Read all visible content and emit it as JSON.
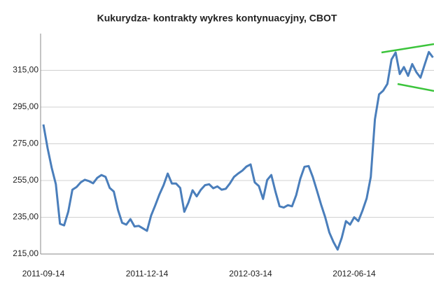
{
  "chart_data": {
    "type": "line",
    "title": "Kukurydza- kontrakty wykres kontynuacyjny, CBOT",
    "categories": [
      "2011-09-14",
      null,
      null,
      null,
      null,
      null,
      null,
      null,
      null,
      null,
      null,
      null,
      null,
      null,
      null,
      null,
      null,
      null,
      null,
      null,
      null,
      null,
      null,
      null,
      null,
      "2011-12-14",
      null,
      null,
      null,
      null,
      null,
      null,
      null,
      null,
      null,
      null,
      null,
      null,
      null,
      null,
      null,
      null,
      null,
      null,
      null,
      null,
      null,
      null,
      null,
      null,
      "2012-03-14",
      null,
      null,
      null,
      null,
      null,
      null,
      null,
      null,
      null,
      null,
      null,
      null,
      null,
      null,
      null,
      null,
      null,
      null,
      null,
      null,
      null,
      null,
      null,
      null,
      "2012-06-14",
      null,
      null,
      null,
      null,
      null,
      null,
      null,
      null,
      null,
      null,
      null,
      null,
      null,
      null,
      null,
      null,
      null,
      null,
      null
    ],
    "series": [
      {
        "name": "Kukurydza",
        "color": "#4a7ebb",
        "values": [
          285.5,
          272.8,
          262,
          253,
          231.4,
          230.6,
          238,
          250,
          251.5,
          254,
          255.4,
          254.7,
          253.5,
          256.5,
          258,
          257,
          251,
          249,
          239,
          232,
          231,
          234,
          230,
          230.3,
          229,
          227.6,
          236,
          241.5,
          247.5,
          252.5,
          258.8,
          253.4,
          253.4,
          251,
          238,
          243,
          249.7,
          246.4,
          250,
          252.5,
          253,
          250.8,
          251.8,
          250,
          250.5,
          253.4,
          257,
          258.8,
          260.4,
          262.6,
          263.8,
          254,
          252,
          245,
          255.3,
          258,
          249,
          241,
          240.3,
          241.6,
          241,
          247,
          256,
          262.5,
          262.9,
          257,
          249.6,
          242,
          235,
          226.7,
          221.5,
          217.4,
          223.8,
          232.9,
          231,
          235,
          232.9,
          238.6,
          245.3,
          257,
          288.3,
          301.9,
          303.9,
          307.6,
          320.9,
          324.7,
          313,
          316.8,
          312,
          318.4,
          314,
          311,
          318,
          325,
          322
        ]
      }
    ],
    "ylim": [
      215,
      335
    ],
    "yticks": [
      {
        "value": 215,
        "label": "215,00"
      },
      {
        "value": 235,
        "label": "235,00"
      },
      {
        "value": 255,
        "label": "255,00"
      },
      {
        "value": 275,
        "label": "275,00"
      },
      {
        "value": 295,
        "label": "295,00"
      },
      {
        "value": 315,
        "label": "315,00"
      }
    ],
    "grid": true
  }
}
